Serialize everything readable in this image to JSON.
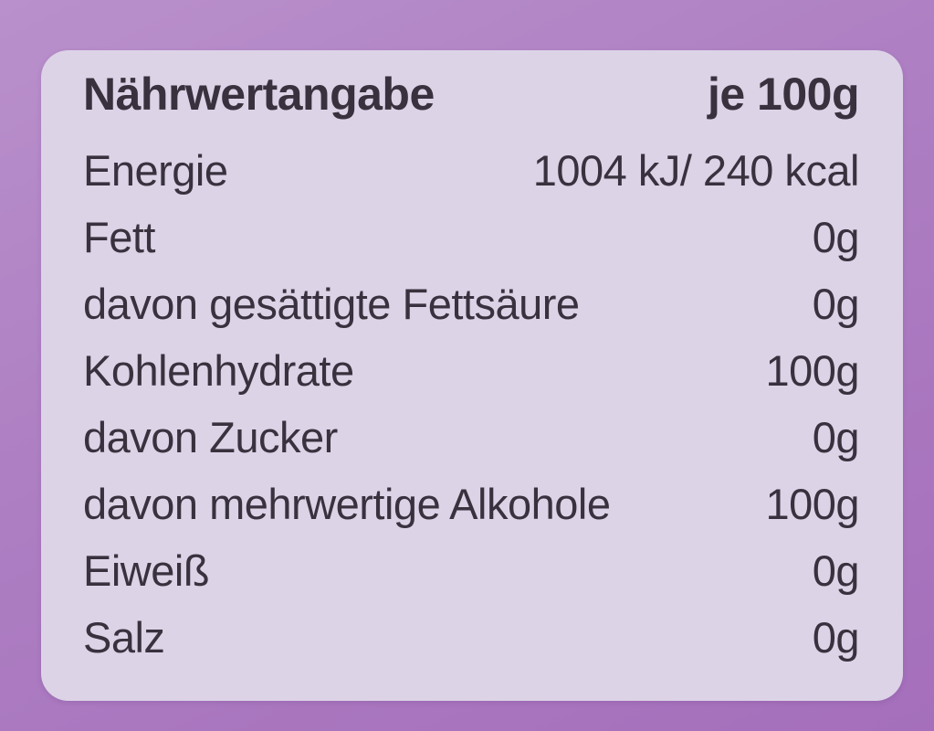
{
  "label": {
    "title": "Nährwertangabe",
    "unit_header": "je 100g",
    "rows": [
      {
        "name": "Energie",
        "value": "1004 kJ/ 240 kcal"
      },
      {
        "name": "Fett",
        "value": "0g"
      },
      {
        "name": "davon gesättigte Fettsäure",
        "value": "0g"
      },
      {
        "name": "Kohlenhydrate",
        "value": "100g"
      },
      {
        "name": "davon Zucker",
        "value": "0g"
      },
      {
        "name": "davon mehrwertige Alkohole",
        "value": "100g"
      },
      {
        "name": "Eiweiß",
        "value": "0g"
      },
      {
        "name": "Salz",
        "value": "0g"
      }
    ],
    "colors": {
      "outer_background": "#ad7ec2",
      "outer_background_light": "#b990cb",
      "outer_background_dark": "#a56fbb",
      "label_background": "#dcd3e7",
      "text": "#39323e"
    }
  }
}
